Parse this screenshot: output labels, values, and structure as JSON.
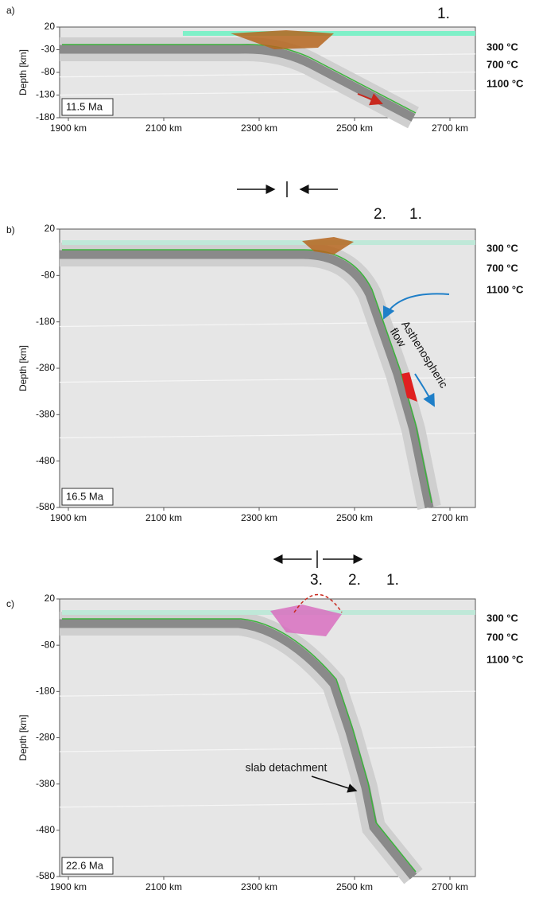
{
  "panels": [
    {
      "label": "a)",
      "time": "11.5 Ma",
      "y_axis_label": "Depth [km]",
      "yticks": [
        20,
        -30,
        -80,
        -130,
        -180
      ],
      "xticks": [
        "1900 km",
        "2100 km",
        "2300 km",
        "2500 km",
        "2700 km"
      ],
      "temperatures": [
        "300 °C",
        "700 °C",
        "1100 °C"
      ],
      "markers": [
        {
          "text": "1.",
          "color": "#2a8fd0"
        }
      ]
    },
    {
      "label": "b)",
      "time": "16.5 Ma",
      "y_axis_label": "Depth [km]",
      "yticks": [
        20,
        -80,
        -180,
        -280,
        -380,
        -480,
        -580
      ],
      "xticks": [
        "1900 km",
        "2100 km",
        "2300 km",
        "2500 km",
        "2700 km"
      ],
      "temperatures": [
        "300 °C",
        "700 °C",
        "1100 °C"
      ],
      "markers": [
        {
          "text": "2.",
          "color": "#2a8fd0"
        },
        {
          "text": "1.",
          "color": "#bdbdbd"
        }
      ],
      "annotation_lines": [
        "Asthenospheric",
        "flow"
      ]
    },
    {
      "label": "c)",
      "time": "22.6 Ma",
      "y_axis_label": "Depth [km]",
      "yticks": [
        20,
        -80,
        -180,
        -280,
        -380,
        -480,
        -580
      ],
      "xticks": [
        "1900 km",
        "2100 km",
        "2300 km",
        "2500 km",
        "2700 km"
      ],
      "temperatures": [
        "300 °C",
        "700 °C",
        "1100 °C"
      ],
      "markers": [
        {
          "text": "3.",
          "color": "#2a8fd0"
        },
        {
          "text": "2.",
          "color": "#a0a0a0"
        },
        {
          "text": "1.",
          "color": "#c8c8c8"
        }
      ],
      "annotation_lines": [
        "slab detachment"
      ]
    }
  ]
}
